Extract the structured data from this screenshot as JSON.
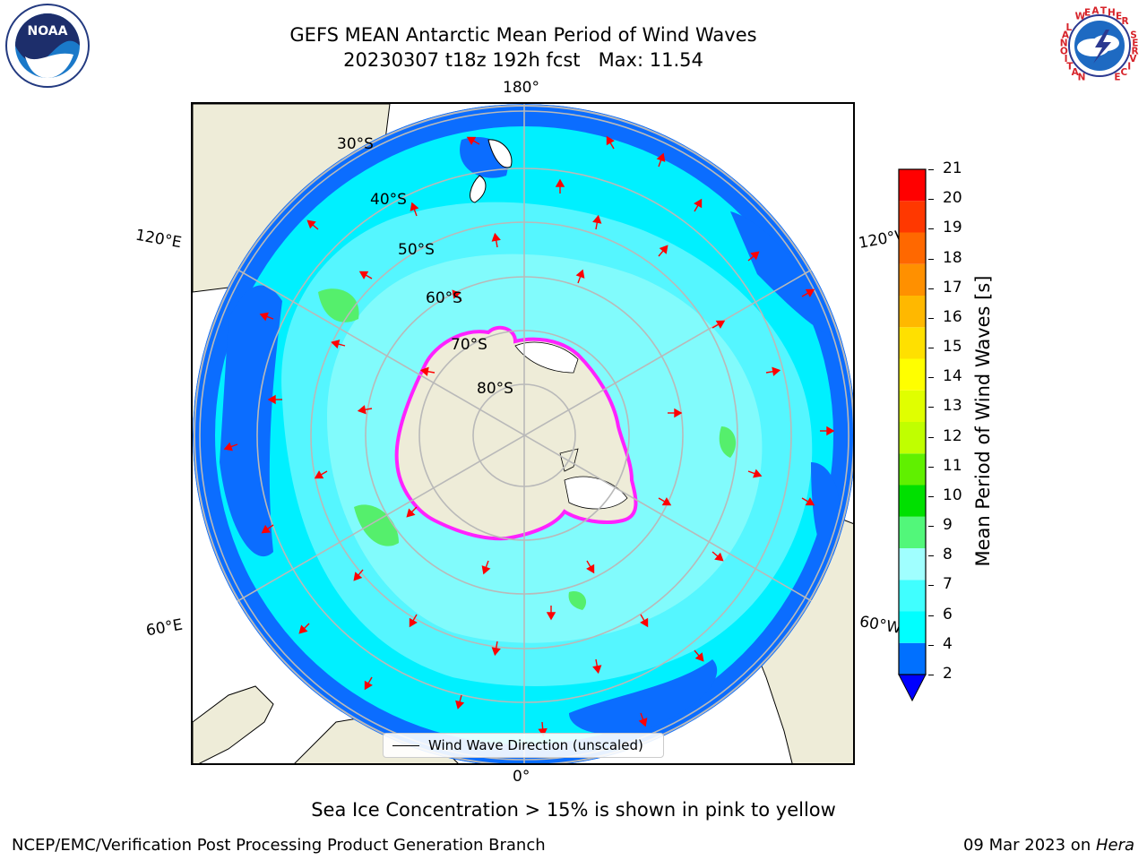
{
  "header": {
    "title_line1": "GEFS MEAN Antarctic Mean Period of Wind Waves",
    "title_line2": "20230307 t18z 192h fcst   Max: 11.54"
  },
  "logos": {
    "noaa_logo_text": "NOAA",
    "nws_logo_text": "NATIONAL WEATHER SERVICE"
  },
  "map": {
    "projection": "south-polar-stereographic",
    "longitude_labels": [
      "180°",
      "120°E",
      "120°W",
      "60°E",
      "60°W",
      "0°"
    ],
    "latitude_labels": [
      "30°S",
      "40°S",
      "50°S",
      "60°S",
      "70°S",
      "80°S"
    ],
    "colors": {
      "land": "#eeecd8",
      "ocean_2_4": "#0b6dff",
      "ocean_4_6": "#00f0ff",
      "ocean_6_8": "#55f6ff",
      "ocean_8_9": "#a6fffa",
      "ocean_9_10": "#55ef6c",
      "ice_edge": "#ff22ff",
      "arrows": "#ff0000",
      "grid": "#b9b9b9"
    }
  },
  "legend": {
    "label": "Wind Wave Direction (unscaled)"
  },
  "colorbar": {
    "title": "Mean Period of Wind Waves [s]",
    "ticks": [
      "2",
      "4",
      "6",
      "7",
      "8",
      "9",
      "10",
      "11",
      "12",
      "13",
      "14",
      "15",
      "16",
      "17",
      "18",
      "19",
      "20",
      "21"
    ],
    "colors": [
      "#0070ff",
      "#00ffff",
      "#40ffff",
      "#a0ffff",
      "#52f77a",
      "#00e000",
      "#60f000",
      "#c0ff00",
      "#e0ff00",
      "#ffff00",
      "#ffe000",
      "#ffb800",
      "#ff9000",
      "#ff6800",
      "#ff3800",
      "#ff0000"
    ],
    "extend_color": "#0000ff"
  },
  "footer": {
    "note": "Sea Ice Concentration > 15% is shown in pink to yellow",
    "credit_left": "NCEP/EMC/Verification Post Processing Product Generation Branch",
    "credit_right_date": "09 Mar 2023 on ",
    "credit_right_host": "Hera"
  }
}
